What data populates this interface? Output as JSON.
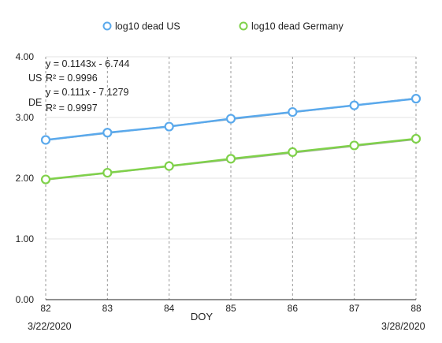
{
  "chart_data": {
    "type": "line",
    "x": [
      82,
      83,
      84,
      85,
      86,
      87,
      88
    ],
    "xlim": [
      82,
      88
    ],
    "ylim": [
      0,
      4
    ],
    "yticks": [
      0,
      1,
      2,
      3,
      4
    ],
    "ytick_labels": [
      "0.00",
      "1.00",
      "2.00",
      "3.00",
      "4.00"
    ],
    "xlabel": "DOY",
    "date_labels": {
      "start": "3/22/2020",
      "end": "3/28/2020"
    },
    "grid": {
      "vertical": true,
      "horizontal": true
    },
    "legend_position": "top",
    "series": [
      {
        "name": "log10 dead US",
        "color": "#5aa9ec",
        "values": [
          2.63,
          2.75,
          2.85,
          2.98,
          3.09,
          3.2,
          3.31
        ]
      },
      {
        "name": "log10 dead Germany",
        "color": "#7fd14a",
        "values": [
          1.98,
          2.09,
          2.2,
          2.32,
          2.43,
          2.54,
          2.65
        ]
      }
    ],
    "trendlines": [
      {
        "series_label": "US",
        "equation": "y = 0.1143x - 6.744",
        "r2": "R² = 0.9996",
        "slope": 0.1143,
        "intercept": -6.744,
        "color": "#a9a9a9"
      },
      {
        "series_label": "DE",
        "equation": "y = 0.111x - 7.1279",
        "r2": "R² = 0.9997",
        "slope": 0.111,
        "intercept": -7.1279,
        "color": "#a9a9a9"
      }
    ]
  }
}
